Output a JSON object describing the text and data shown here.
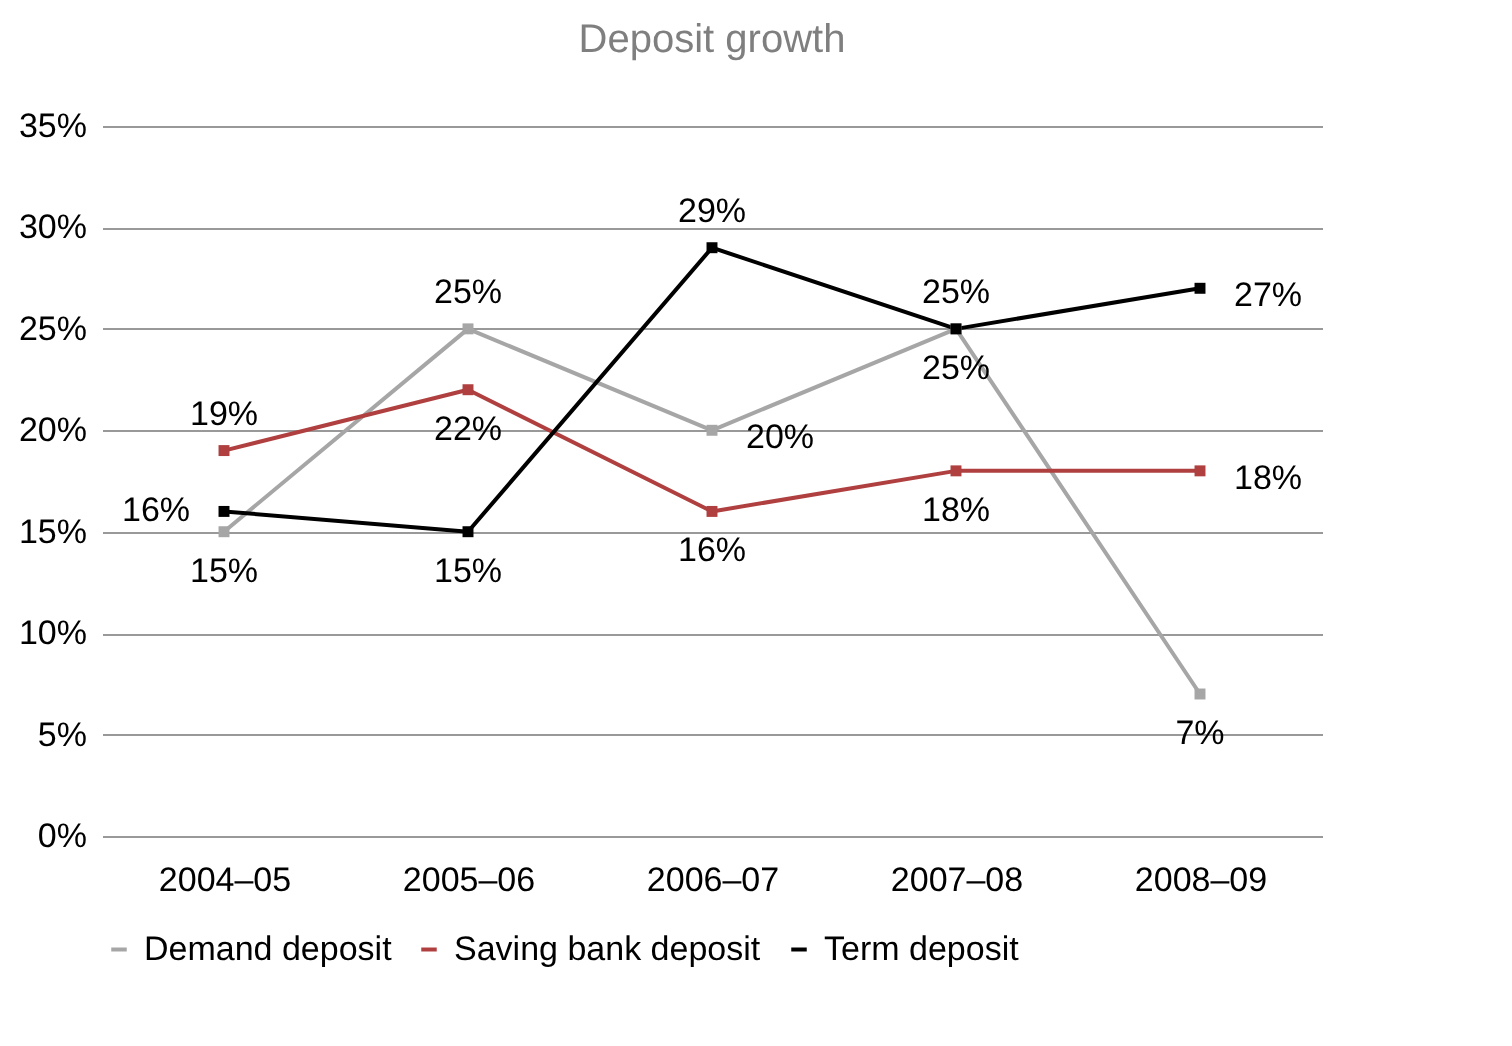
{
  "chart_data": {
    "type": "line",
    "title": "Deposit growth",
    "categories": [
      "2004–05",
      "2005–06",
      "2006–07",
      "2007–08",
      "2008–09"
    ],
    "series": [
      {
        "name": "Demand deposit",
        "color": "#a6a6a6",
        "values": [
          15,
          25,
          20,
          25,
          7
        ],
        "value_labels": [
          "15%",
          "25%",
          "20%",
          "25%",
          "7%"
        ]
      },
      {
        "name": "Saving bank deposit",
        "color": "#b04040",
        "values": [
          19,
          22,
          16,
          18,
          18
        ],
        "value_labels": [
          "19%",
          "22%",
          "16%",
          "18%",
          "18%"
        ]
      },
      {
        "name": "Term deposit",
        "color": "#000000",
        "values": [
          16,
          15,
          29,
          25,
          27
        ],
        "value_labels": [
          "16%",
          "15%",
          "29%",
          "25%",
          "27%"
        ]
      }
    ],
    "ylim": [
      0,
      35
    ],
    "yticks": [
      {
        "value": 0,
        "label": "0%"
      },
      {
        "value": 5,
        "label": "5%"
      },
      {
        "value": 10,
        "label": "10%"
      },
      {
        "value": 15,
        "label": "15%"
      },
      {
        "value": 20,
        "label": "20%"
      },
      {
        "value": 25,
        "label": "25%"
      },
      {
        "value": 30,
        "label": "30%"
      },
      {
        "value": 35,
        "label": "35%"
      }
    ],
    "grid": "y",
    "legend": "bottom",
    "marker": "square",
    "line_style": "solid"
  }
}
